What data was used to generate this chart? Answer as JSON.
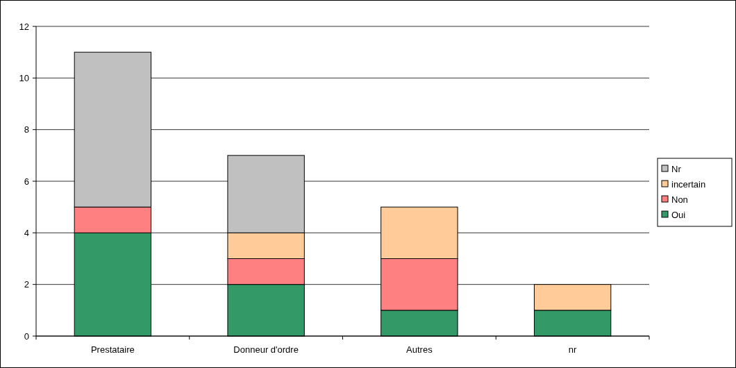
{
  "chart_data": {
    "type": "bar",
    "stacked": true,
    "categories": [
      "Prestataire",
      "Donneur d'ordre",
      "Autres",
      "nr"
    ],
    "series": [
      {
        "name": "Oui",
        "color": "#339966",
        "values": [
          4,
          2,
          1,
          1
        ]
      },
      {
        "name": "Non",
        "color": "#ff8080",
        "values": [
          1,
          1,
          2,
          0
        ]
      },
      {
        "name": "incertain",
        "color": "#ffcc99",
        "values": [
          0,
          1,
          2,
          1
        ]
      },
      {
        "name": "Nr",
        "color": "#c0c0c0",
        "values": [
          6,
          3,
          0,
          0
        ]
      }
    ],
    "ylim": [
      0,
      12
    ],
    "yticks": [
      0,
      2,
      4,
      6,
      8,
      10,
      12
    ],
    "grid": "y",
    "legend": "right"
  }
}
